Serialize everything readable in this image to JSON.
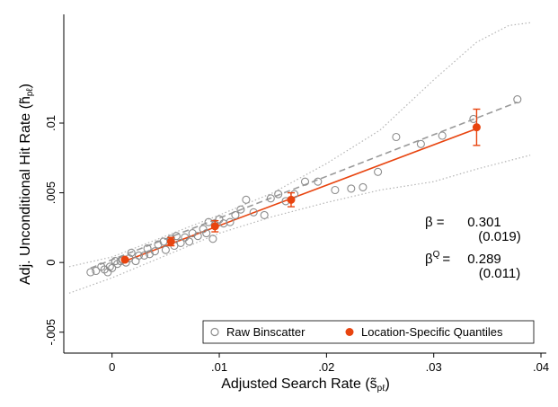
{
  "chart_data": {
    "type": "scatter",
    "title": "",
    "xlabel": "Adjusted Search Rate (s̃",
    "xlabel_sub": "pℓ",
    "xlabel_end": ")",
    "ylabel": "Adj. Unconditional Hit Rate (h̃",
    "ylabel_sub": "pℓ",
    "ylabel_end": ")",
    "xlim": [
      -0.0045,
      0.0405
    ],
    "ylim": [
      -0.0065,
      0.0178
    ],
    "x_ticks": [
      0,
      0.01,
      0.02,
      0.03,
      0.04
    ],
    "x_tick_labels": [
      "0",
      ".01",
      ".02",
      ".03",
      ".04"
    ],
    "y_ticks": [
      -0.005,
      0,
      0.005,
      0.01
    ],
    "y_tick_labels": [
      "-.005",
      "0",
      ".005",
      ".01"
    ],
    "grid": false,
    "legend": {
      "placement": "bottom-right",
      "entries": [
        "Raw Binscatter",
        "Location-Specific Quantiles"
      ]
    },
    "annotations": {
      "beta_label": "β =",
      "beta_value": "0.301",
      "beta_se": "(0.019)",
      "beta_q_label": "β",
      "beta_q_sup": "Q",
      "beta_q_eq": "=",
      "beta_q_value": "0.289",
      "beta_q_se": "(0.011)"
    },
    "colors": {
      "raw": "#8c8c8c",
      "quantile": "#e8440f",
      "fit_raw": "#9a9a9a",
      "band": "#b5b5b5"
    },
    "series": [
      {
        "name": "Raw Binscatter",
        "points": [
          [
            -0.002,
            -0.0007
          ],
          [
            -0.0015,
            -0.0006
          ],
          [
            -0.001,
            -0.0003
          ],
          [
            -0.0007,
            -0.0005
          ],
          [
            -0.0004,
            -0.0007
          ],
          [
            -0.0002,
            -0.0003
          ],
          [
            0.0,
            -0.0004
          ],
          [
            0.0003,
            0.0001
          ],
          [
            0.0005,
            -0.0001
          ],
          [
            0.0008,
            0.0001
          ],
          [
            0.001,
            0.0002
          ],
          [
            0.0013,
            0.0
          ],
          [
            0.0016,
            0.0003
          ],
          [
            0.0018,
            0.0007
          ],
          [
            0.0022,
            0.0001
          ],
          [
            0.0025,
            0.0005
          ],
          [
            0.003,
            0.0005
          ],
          [
            0.0033,
            0.001
          ],
          [
            0.0035,
            0.0006
          ],
          [
            0.004,
            0.0008
          ],
          [
            0.0043,
            0.0013
          ],
          [
            0.0048,
            0.0015
          ],
          [
            0.005,
            0.0009
          ],
          [
            0.0055,
            0.0017
          ],
          [
            0.0058,
            0.0012
          ],
          [
            0.006,
            0.0019
          ],
          [
            0.0064,
            0.0014
          ],
          [
            0.0068,
            0.0018
          ],
          [
            0.0072,
            0.0015
          ],
          [
            0.0075,
            0.0021
          ],
          [
            0.008,
            0.0019
          ],
          [
            0.0085,
            0.0024
          ],
          [
            0.0088,
            0.0021
          ],
          [
            0.009,
            0.0029
          ],
          [
            0.0094,
            0.0017
          ],
          [
            0.0096,
            0.0027
          ],
          [
            0.01,
            0.0031
          ],
          [
            0.0104,
            0.0028
          ],
          [
            0.011,
            0.0029
          ],
          [
            0.0115,
            0.0034
          ],
          [
            0.012,
            0.0038
          ],
          [
            0.0125,
            0.0045
          ],
          [
            0.0132,
            0.0036
          ],
          [
            0.0142,
            0.0034
          ],
          [
            0.0148,
            0.0046
          ],
          [
            0.0155,
            0.0049
          ],
          [
            0.0162,
            0.0044
          ],
          [
            0.017,
            0.0049
          ],
          [
            0.018,
            0.0058
          ],
          [
            0.0192,
            0.0058
          ],
          [
            0.0208,
            0.0052
          ],
          [
            0.0223,
            0.0053
          ],
          [
            0.0234,
            0.0054
          ],
          [
            0.0248,
            0.0065
          ],
          [
            0.0265,
            0.009
          ],
          [
            0.0288,
            0.0085
          ],
          [
            0.0308,
            0.0091
          ],
          [
            0.0337,
            0.0103
          ],
          [
            0.0378,
            0.0117
          ]
        ]
      },
      {
        "name": "Location-Specific Quantiles",
        "points": [
          [
            0.0012,
            0.0002,
            0.0001,
            0.0003
          ],
          [
            0.0055,
            0.0015,
            0.0012,
            0.0018
          ],
          [
            0.0096,
            0.0026,
            0.0022,
            0.003
          ],
          [
            0.0167,
            0.0045,
            0.004,
            0.005
          ],
          [
            0.034,
            0.0097,
            0.0084,
            0.011
          ]
        ]
      }
    ],
    "fit_lines": {
      "raw_dashed": [
        [
          -0.002,
          -0.0004
        ],
        [
          0.0378,
          0.0115
        ]
      ],
      "quantile_solid": [
        [
          0.0012,
          0.0001
        ],
        [
          0.034,
          0.0096
        ]
      ]
    },
    "confidence_band": {
      "upper": [
        [
          -0.004,
          -0.0003
        ],
        [
          0.0,
          0.0004
        ],
        [
          0.005,
          0.0019
        ],
        [
          0.01,
          0.0034
        ],
        [
          0.015,
          0.005
        ],
        [
          0.02,
          0.0071
        ],
        [
          0.025,
          0.0095
        ],
        [
          0.03,
          0.0131
        ],
        [
          0.034,
          0.0158
        ],
        [
          0.037,
          0.017
        ],
        [
          0.039,
          0.0172
        ]
      ],
      "lower": [
        [
          -0.004,
          -0.0022
        ],
        [
          0.0,
          -0.0011
        ],
        [
          0.005,
          0.0005
        ],
        [
          0.01,
          0.0021
        ],
        [
          0.015,
          0.0033
        ],
        [
          0.02,
          0.0043
        ],
        [
          0.025,
          0.0052
        ],
        [
          0.03,
          0.0058
        ],
        [
          0.034,
          0.0067
        ],
        [
          0.037,
          0.0073
        ],
        [
          0.039,
          0.0077
        ]
      ]
    }
  }
}
